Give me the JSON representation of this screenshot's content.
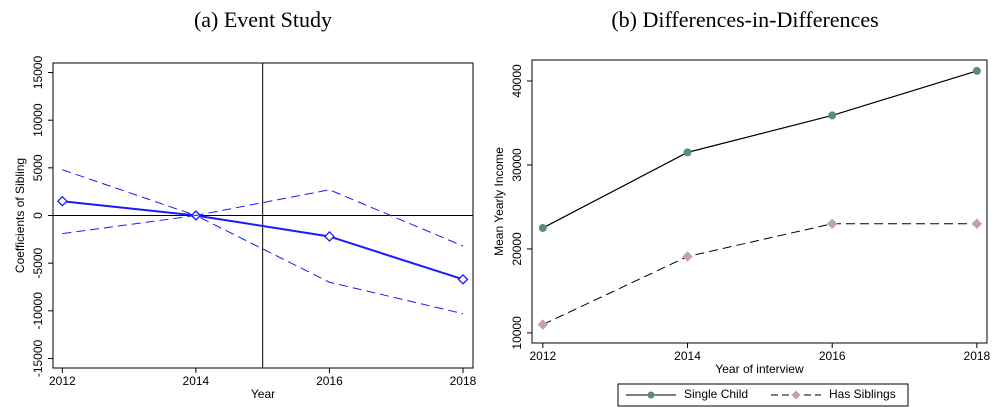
{
  "chart_data": [
    {
      "type": "line",
      "title": "(a) Event Study",
      "x_label": "Year",
      "y_label": "Coefficients of Sibling",
      "x": [
        2012,
        2014,
        2016,
        2018
      ],
      "xlim": [
        2011.86,
        2018.15
      ],
      "xticks": [
        2012,
        2014,
        2016,
        2018
      ],
      "ylim": [
        -16000,
        16000
      ],
      "yticks": [
        -15000,
        -10000,
        -5000,
        0,
        5000,
        10000,
        15000
      ],
      "vline": 2015,
      "hline": 0,
      "series": [
        {
          "color": "#1a1aff",
          "values": [
            1500,
            0,
            -2200,
            -6700
          ],
          "dashed": false,
          "marker": "hollow-diamond"
        },
        {
          "color": "#1a1aff",
          "values": [
            4800,
            0,
            2700,
            -3200
          ],
          "dashed": true
        },
        {
          "color": "#1a1aff",
          "values": [
            -1900,
            0,
            -7000,
            -10300
          ],
          "dashed": true
        }
      ]
    },
    {
      "type": "line",
      "title": "(b) Differences-in-Differences",
      "x_label": "Year of interview",
      "y_label": "Mean Yearly Income",
      "x": [
        2012,
        2014,
        2016,
        2018
      ],
      "xlim": [
        2011.85,
        2018.14
      ],
      "xticks": [
        2012,
        2014,
        2016,
        2018
      ],
      "ylim": [
        8800,
        42500
      ],
      "yticks": [
        10000,
        20000,
        30000,
        40000
      ],
      "legend": "bottom",
      "series": [
        {
          "name": "Single Child",
          "color": "#000000",
          "marker_color": "#5f8b7f",
          "values": [
            22500,
            31500,
            35900,
            41200
          ],
          "dashed": false,
          "marker": "circle"
        },
        {
          "name": "Has Siblings",
          "color": "#000000",
          "marker_color": "#c4a29d",
          "values": [
            11000,
            19100,
            23000,
            23000
          ],
          "dashed": true,
          "marker": "diamond"
        }
      ]
    }
  ]
}
